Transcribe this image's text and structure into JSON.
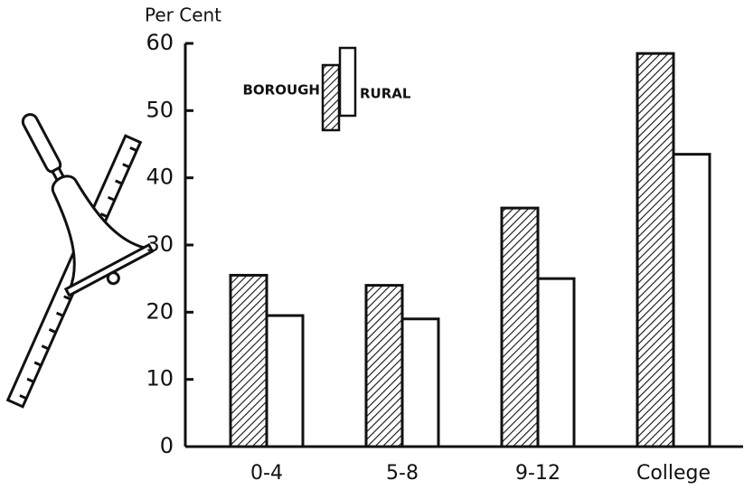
{
  "chart_data": {
    "type": "bar",
    "y_label": "Per Cent",
    "categories": [
      "0-4",
      "5-8",
      "9-12",
      "College"
    ],
    "series": [
      {
        "name": "BOROUGH",
        "color": "#111111",
        "hatch": true,
        "values": [
          25.5,
          24,
          35.5,
          58.5
        ]
      },
      {
        "name": "RURAL",
        "color": "#ffffff",
        "hatch": false,
        "values": [
          19.5,
          19,
          25,
          43.5
        ]
      }
    ],
    "ylim": [
      0,
      60
    ],
    "yticks": [
      0,
      10,
      20,
      30,
      40,
      50,
      60
    ],
    "grid": false
  }
}
